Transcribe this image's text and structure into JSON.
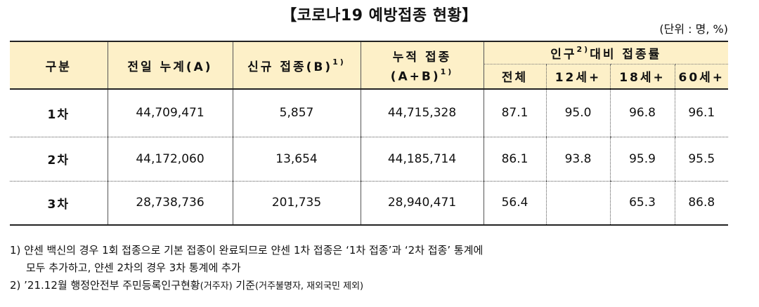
{
  "title": "【코로나19 예방접종 현황】",
  "unit": "(단위 : 명, %)",
  "header": {
    "category": "구분",
    "prev_total": "전일 누계(A)",
    "new": "신규 접종(B)",
    "new_sup": "1)",
    "cumulative_line1": "누적 접종",
    "cumulative_line2": "(A+B)",
    "cumulative_sup": "1)",
    "rate_group_pre": "인구",
    "rate_group_sup": "2)",
    "rate_group_post": "대비 접종률",
    "sub": [
      "전체",
      "12세+",
      "18세+",
      "60세+"
    ]
  },
  "rows": [
    {
      "label": "1차",
      "prev": "44,709,471",
      "new": "5,857",
      "cum": "44,715,328",
      "r_all": "87.1",
      "r12": "95.0",
      "r18": "96.8",
      "r60": "96.1"
    },
    {
      "label": "2차",
      "prev": "44,172,060",
      "new": "13,654",
      "cum": "44,185,714",
      "r_all": "86.1",
      "r12": "93.8",
      "r18": "95.9",
      "r60": "95.5"
    },
    {
      "label": "3차",
      "prev": "28,738,736",
      "new": "201,735",
      "cum": "28,940,471",
      "r_all": "56.4",
      "r12": "",
      "r18": "65.3",
      "r60": "86.8"
    }
  ],
  "notes": {
    "n1_line1": "1) 얀센 백신의 경우 1회 접종으로 기본 접종이 완료되므로 얀센 1차 접종은 ‘1차 접종’과 ‘2차 접종’ 통계에",
    "n1_line2": "모두 추가하고, 얀센 2차의 경우 3차 통계에 추가",
    "n2_main": "2) ’21.12월 행정안전부 주민등록인구현황",
    "n2_small1": "(거주자)",
    "n2_mid": " 기준",
    "n2_small2": "(거주불명자, 재외국민 제외)"
  }
}
